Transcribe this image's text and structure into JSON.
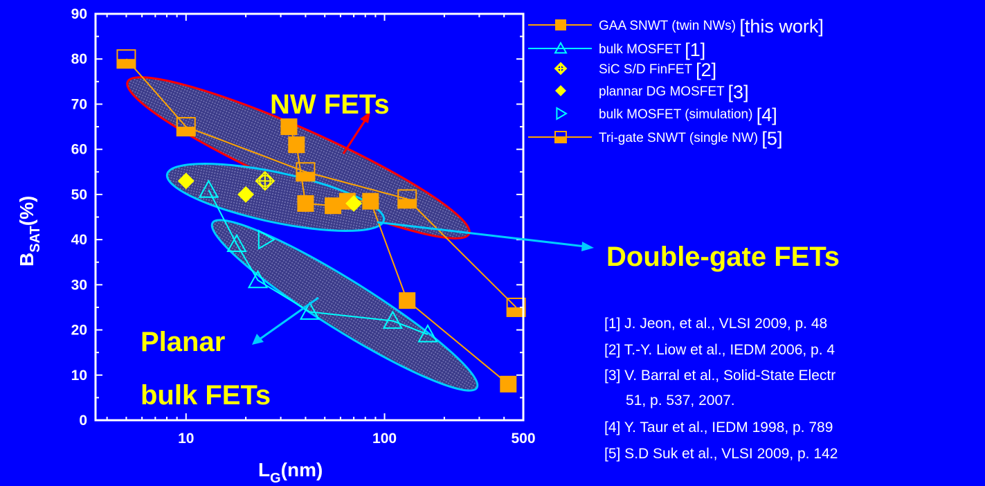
{
  "chart_data": {
    "type": "scatter",
    "xscale": "log",
    "xlim": [
      3.5,
      500
    ],
    "ylim": [
      0,
      90
    ],
    "xticks": [
      10,
      100,
      500
    ],
    "yticks": [
      0,
      10,
      20,
      30,
      40,
      50,
      60,
      70,
      80,
      90
    ],
    "xlabel": {
      "main": "L",
      "sub": "G",
      "unit": "(nm)"
    },
    "ylabel": {
      "main": "B",
      "sub": "SAT",
      "unit": "(%)"
    },
    "series": [
      {
        "name": "GAA SNWT (twin NWs)",
        "ref": "[this work]",
        "marker": "square-filled",
        "color": "#ffa500",
        "line": true,
        "points": [
          [
            33,
            65
          ],
          [
            36,
            61
          ],
          [
            40,
            48
          ],
          [
            55,
            47.5
          ],
          [
            65,
            48.5
          ],
          [
            85,
            48.5
          ],
          [
            130,
            26.5
          ],
          [
            420,
            8
          ]
        ]
      },
      {
        "name": "bulk MOSFET",
        "ref": "[1]",
        "marker": "triangle-up-open",
        "color": "#00ffff",
        "line": true,
        "points": [
          [
            13,
            51
          ],
          [
            18,
            39
          ],
          [
            23,
            31
          ],
          [
            42,
            24
          ],
          [
            110,
            22
          ],
          [
            165,
            19
          ]
        ]
      },
      {
        "name": "SiC S/D FinFET",
        "ref": "[2]",
        "marker": "circle-cross",
        "color": "#ffff00",
        "line": false,
        "points": [
          [
            25,
            53
          ]
        ]
      },
      {
        "name": "plannar DG MOSFET",
        "ref": "[3]",
        "marker": "diamond-filled",
        "color": "#ffff00",
        "line": false,
        "points": [
          [
            10,
            53
          ],
          [
            20,
            50
          ],
          [
            70,
            48
          ]
        ]
      },
      {
        "name": "bulk MOSFET (simulation)",
        "ref": "[4]",
        "marker": "triangle-right-open",
        "color": "#00ffff",
        "line": false,
        "points": [
          [
            25,
            40
          ]
        ]
      },
      {
        "name": "Tri-gate SNWT (single NW)",
        "ref": "[5]",
        "marker": "square-half",
        "color": "#ffa500",
        "line": true,
        "points": [
          [
            5,
            80
          ],
          [
            10,
            65
          ],
          [
            40,
            55
          ],
          [
            130,
            49
          ],
          [
            460,
            25
          ]
        ]
      }
    ],
    "annotations": [
      {
        "id": "nw",
        "text": "NW FETs"
      },
      {
        "id": "dg",
        "text": "Double-gate FETs"
      },
      {
        "id": "planar1",
        "text": "Planar"
      },
      {
        "id": "planar2",
        "text": "bulk FETs"
      }
    ],
    "references": [
      "[1] J. Jeon, et al., VLSI 2009, p. 48",
      "[2] T.-Y. Liow et al., IEDM 2006, p. 4",
      "[3] V. Barral et al., Solid-State Electr",
      "51, p. 537, 2007.",
      "[4] Y. Taur et al., IEDM 1998, p. 789",
      "[5] S.D Suk et al., VLSI 2009, p. 142"
    ]
  }
}
